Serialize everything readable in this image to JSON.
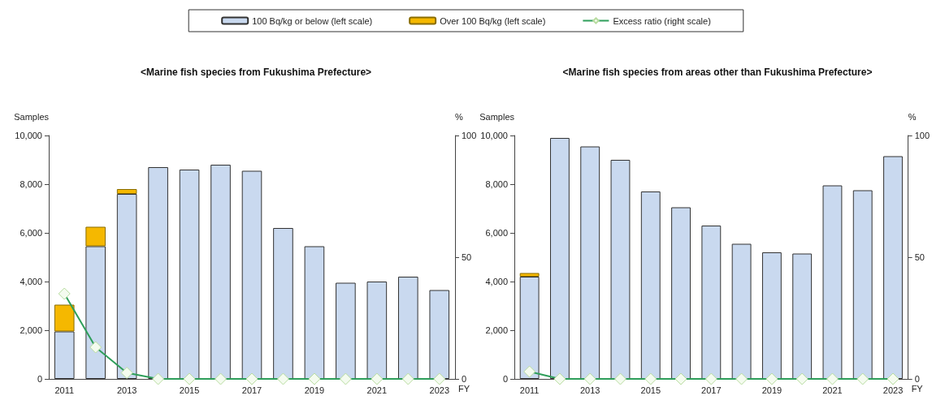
{
  "chart_data": [
    {
      "type": "bar",
      "title": "<Marine fish species from Fukushima Prefecture>",
      "ylabel": "Samples",
      "y2label": "%",
      "xlabel": "FY",
      "categories": [
        "2011",
        null,
        "2013",
        null,
        "2015",
        null,
        "2017",
        null,
        "2019",
        null,
        "2021",
        null,
        "2023"
      ],
      "stacked": true,
      "legend": "top",
      "marker": "diamond",
      "line_style": "solid",
      "ylim": [
        0,
        10000
      ],
      "yticks": [
        {
          "value": 0,
          "label": "0"
        },
        {
          "value": 2000,
          "label": "2,000"
        },
        {
          "value": 4000,
          "label": "4,000"
        },
        {
          "value": 6000,
          "label": "6,000"
        },
        {
          "value": 8000,
          "label": "8,000"
        },
        {
          "value": 10000,
          "label": "10,000"
        }
      ],
      "y2lim": [
        0,
        100
      ],
      "y2ticks": [
        0,
        50,
        100
      ],
      "series": [
        {
          "name": "100 Bq/kg or below (left scale)",
          "color": "#c9d9ef",
          "values": [
            1950,
            5450,
            7600,
            8700,
            8600,
            8800,
            8550,
            6200,
            5450,
            3950,
            4000,
            4200,
            3650
          ]
        },
        {
          "name": "Over 100 Bq/kg (left scale)",
          "color": "#f5b800",
          "values": [
            1100,
            800,
            200,
            null,
            null,
            null,
            null,
            null,
            null,
            null,
            null,
            null,
            null
          ]
        },
        {
          "name": "Excess ratio (right scale)",
          "type": "line",
          "axis": "y2",
          "color": "#2e9e5a",
          "values": [
            35,
            13,
            2.5,
            0,
            0,
            0,
            0,
            0,
            0,
            0,
            0,
            0,
            0
          ]
        }
      ]
    },
    {
      "type": "bar",
      "title": "<Marine fish species from areas other than Fukushima Prefecture>",
      "ylabel": "Samples",
      "y2label": "%",
      "xlabel": "FY",
      "categories": [
        "2011",
        null,
        "2013",
        null,
        "2015",
        null,
        "2017",
        null,
        "2019",
        null,
        "2021",
        null,
        "2023"
      ],
      "stacked": true,
      "legend": false,
      "marker": "diamond",
      "line_style": "solid",
      "ylim": [
        0,
        10000
      ],
      "yticks": [
        {
          "value": 0,
          "label": "0"
        },
        {
          "value": 2000,
          "label": "2,000"
        },
        {
          "value": 4000,
          "label": "4,000"
        },
        {
          "value": 6000,
          "label": "6,000"
        },
        {
          "value": 8000,
          "label": "8,000"
        },
        {
          "value": 10000,
          "label": "10,000"
        }
      ],
      "y2lim": [
        0,
        100
      ],
      "y2ticks": [
        0,
        50,
        100
      ],
      "series": [
        {
          "color": "#c9d9ef",
          "values": [
            4200,
            9900,
            9550,
            9000,
            7700,
            7050,
            6300,
            5550,
            5200,
            5150,
            7950,
            7750,
            9150
          ]
        },
        {
          "color": "#f5b800",
          "values": [
            150,
            null,
            null,
            null,
            null,
            null,
            null,
            null,
            null,
            null,
            null,
            null,
            null
          ]
        },
        {
          "type": "line",
          "axis": "y2",
          "color": "#2e9e5a",
          "values": [
            3,
            0,
            0,
            0,
            0,
            0,
            0,
            0,
            0,
            0,
            0,
            0,
            0
          ]
        }
      ]
    }
  ]
}
